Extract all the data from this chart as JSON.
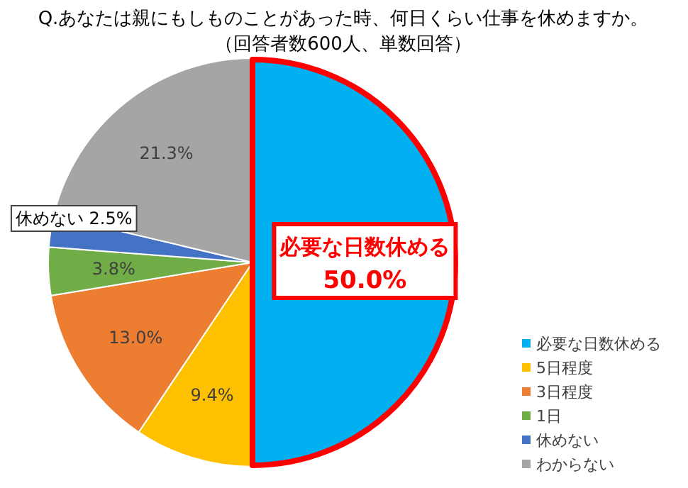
{
  "chart_data": {
    "type": "pie",
    "title": "Q.あなたは親にもしものことがあった時、何日くらい仕事を休めますか。",
    "subtitle": "（回答者数600人、単数回答）",
    "categories": [
      "必要な日数休める",
      "5日程度",
      "3日程度",
      "1日",
      "休めない",
      "わからない"
    ],
    "values": [
      50.0,
      9.4,
      13.0,
      3.8,
      2.5,
      21.3
    ],
    "colors": [
      "#00b0f0",
      "#ffc000",
      "#ed7d31",
      "#70ad47",
      "#4472c4",
      "#a5a5a5"
    ],
    "value_labels": [
      "必要な日数休める\n50.0%",
      "9.4%",
      "13.0%",
      "3.8%",
      "休めない 2.5%",
      "21.3%"
    ],
    "legend": "bottom right"
  }
}
